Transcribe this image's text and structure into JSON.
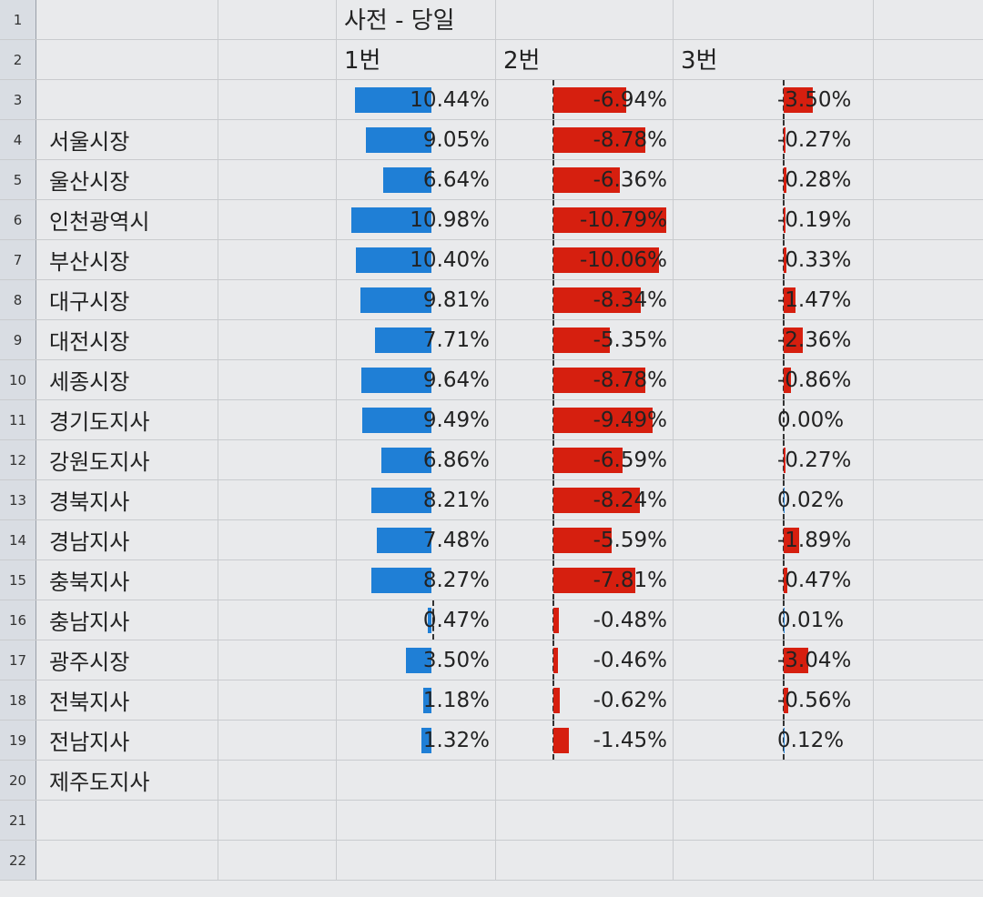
{
  "header": {
    "title": "사전 - 당일",
    "col1": "1번",
    "col2": "2번",
    "col3": "3번"
  },
  "colors": {
    "positive_bar": "#1f7fd6",
    "negative_bar": "#d61f0f"
  },
  "rows": [
    {
      "row": "3",
      "label": "",
      "v1": "10.44%",
      "v2": "-6.94%",
      "v3": "-3.50%"
    },
    {
      "row": "4",
      "label": "서울시장",
      "v1": "9.05%",
      "v2": "-8.78%",
      "v3": "-0.27%"
    },
    {
      "row": "5",
      "label": "울산시장",
      "v1": "6.64%",
      "v2": "-6.36%",
      "v3": "-0.28%"
    },
    {
      "row": "6",
      "label": "인천광역시",
      "v1": "10.98%",
      "v2": "-10.79%",
      "v3": "-0.19%"
    },
    {
      "row": "7",
      "label": "부산시장",
      "v1": "10.40%",
      "v2": "-10.06%",
      "v3": "-0.33%"
    },
    {
      "row": "8",
      "label": "대구시장",
      "v1": "9.81%",
      "v2": "-8.34%",
      "v3": "-1.47%"
    },
    {
      "row": "9",
      "label": "대전시장",
      "v1": "7.71%",
      "v2": "-5.35%",
      "v3": "-2.36%"
    },
    {
      "row": "10",
      "label": "세종시장",
      "v1": "9.64%",
      "v2": "-8.78%",
      "v3": "-0.86%"
    },
    {
      "row": "11",
      "label": "경기도지사",
      "v1": "9.49%",
      "v2": "-9.49%",
      "v3": "0.00%"
    },
    {
      "row": "12",
      "label": "강원도지사",
      "v1": "6.86%",
      "v2": "-6.59%",
      "v3": "-0.27%"
    },
    {
      "row": "13",
      "label": "경북지사",
      "v1": "8.21%",
      "v2": "-8.24%",
      "v3": "0.02%"
    },
    {
      "row": "14",
      "label": "경남지사",
      "v1": "7.48%",
      "v2": "-5.59%",
      "v3": "-1.89%"
    },
    {
      "row": "15",
      "label": "충북지사",
      "v1": "8.27%",
      "v2": "-7.81%",
      "v3": "-0.47%"
    },
    {
      "row": "16",
      "label": "충남지사",
      "v1": "0.47%",
      "v2": "-0.48%",
      "v3": "0.01%"
    },
    {
      "row": "17",
      "label": "광주시장",
      "v1": "3.50%",
      "v2": "-0.46%",
      "v3": "-3.04%"
    },
    {
      "row": "18",
      "label": "전북지사",
      "v1": "1.18%",
      "v2": "-0.62%",
      "v3": "-0.56%"
    },
    {
      "row": "19",
      "label": "전남지사",
      "v1": "1.32%",
      "v2": "-1.45%",
      "v3": "0.12%"
    },
    {
      "row": "20",
      "label": "제주도지사",
      "v1": "",
      "v2": "",
      "v3": ""
    },
    {
      "row": "21",
      "label": "",
      "v1": "",
      "v2": "",
      "v3": ""
    },
    {
      "row": "22",
      "label": "",
      "v1": "",
      "v2": "",
      "v3": ""
    }
  ],
  "header_rows": [
    "1",
    "2"
  ]
}
